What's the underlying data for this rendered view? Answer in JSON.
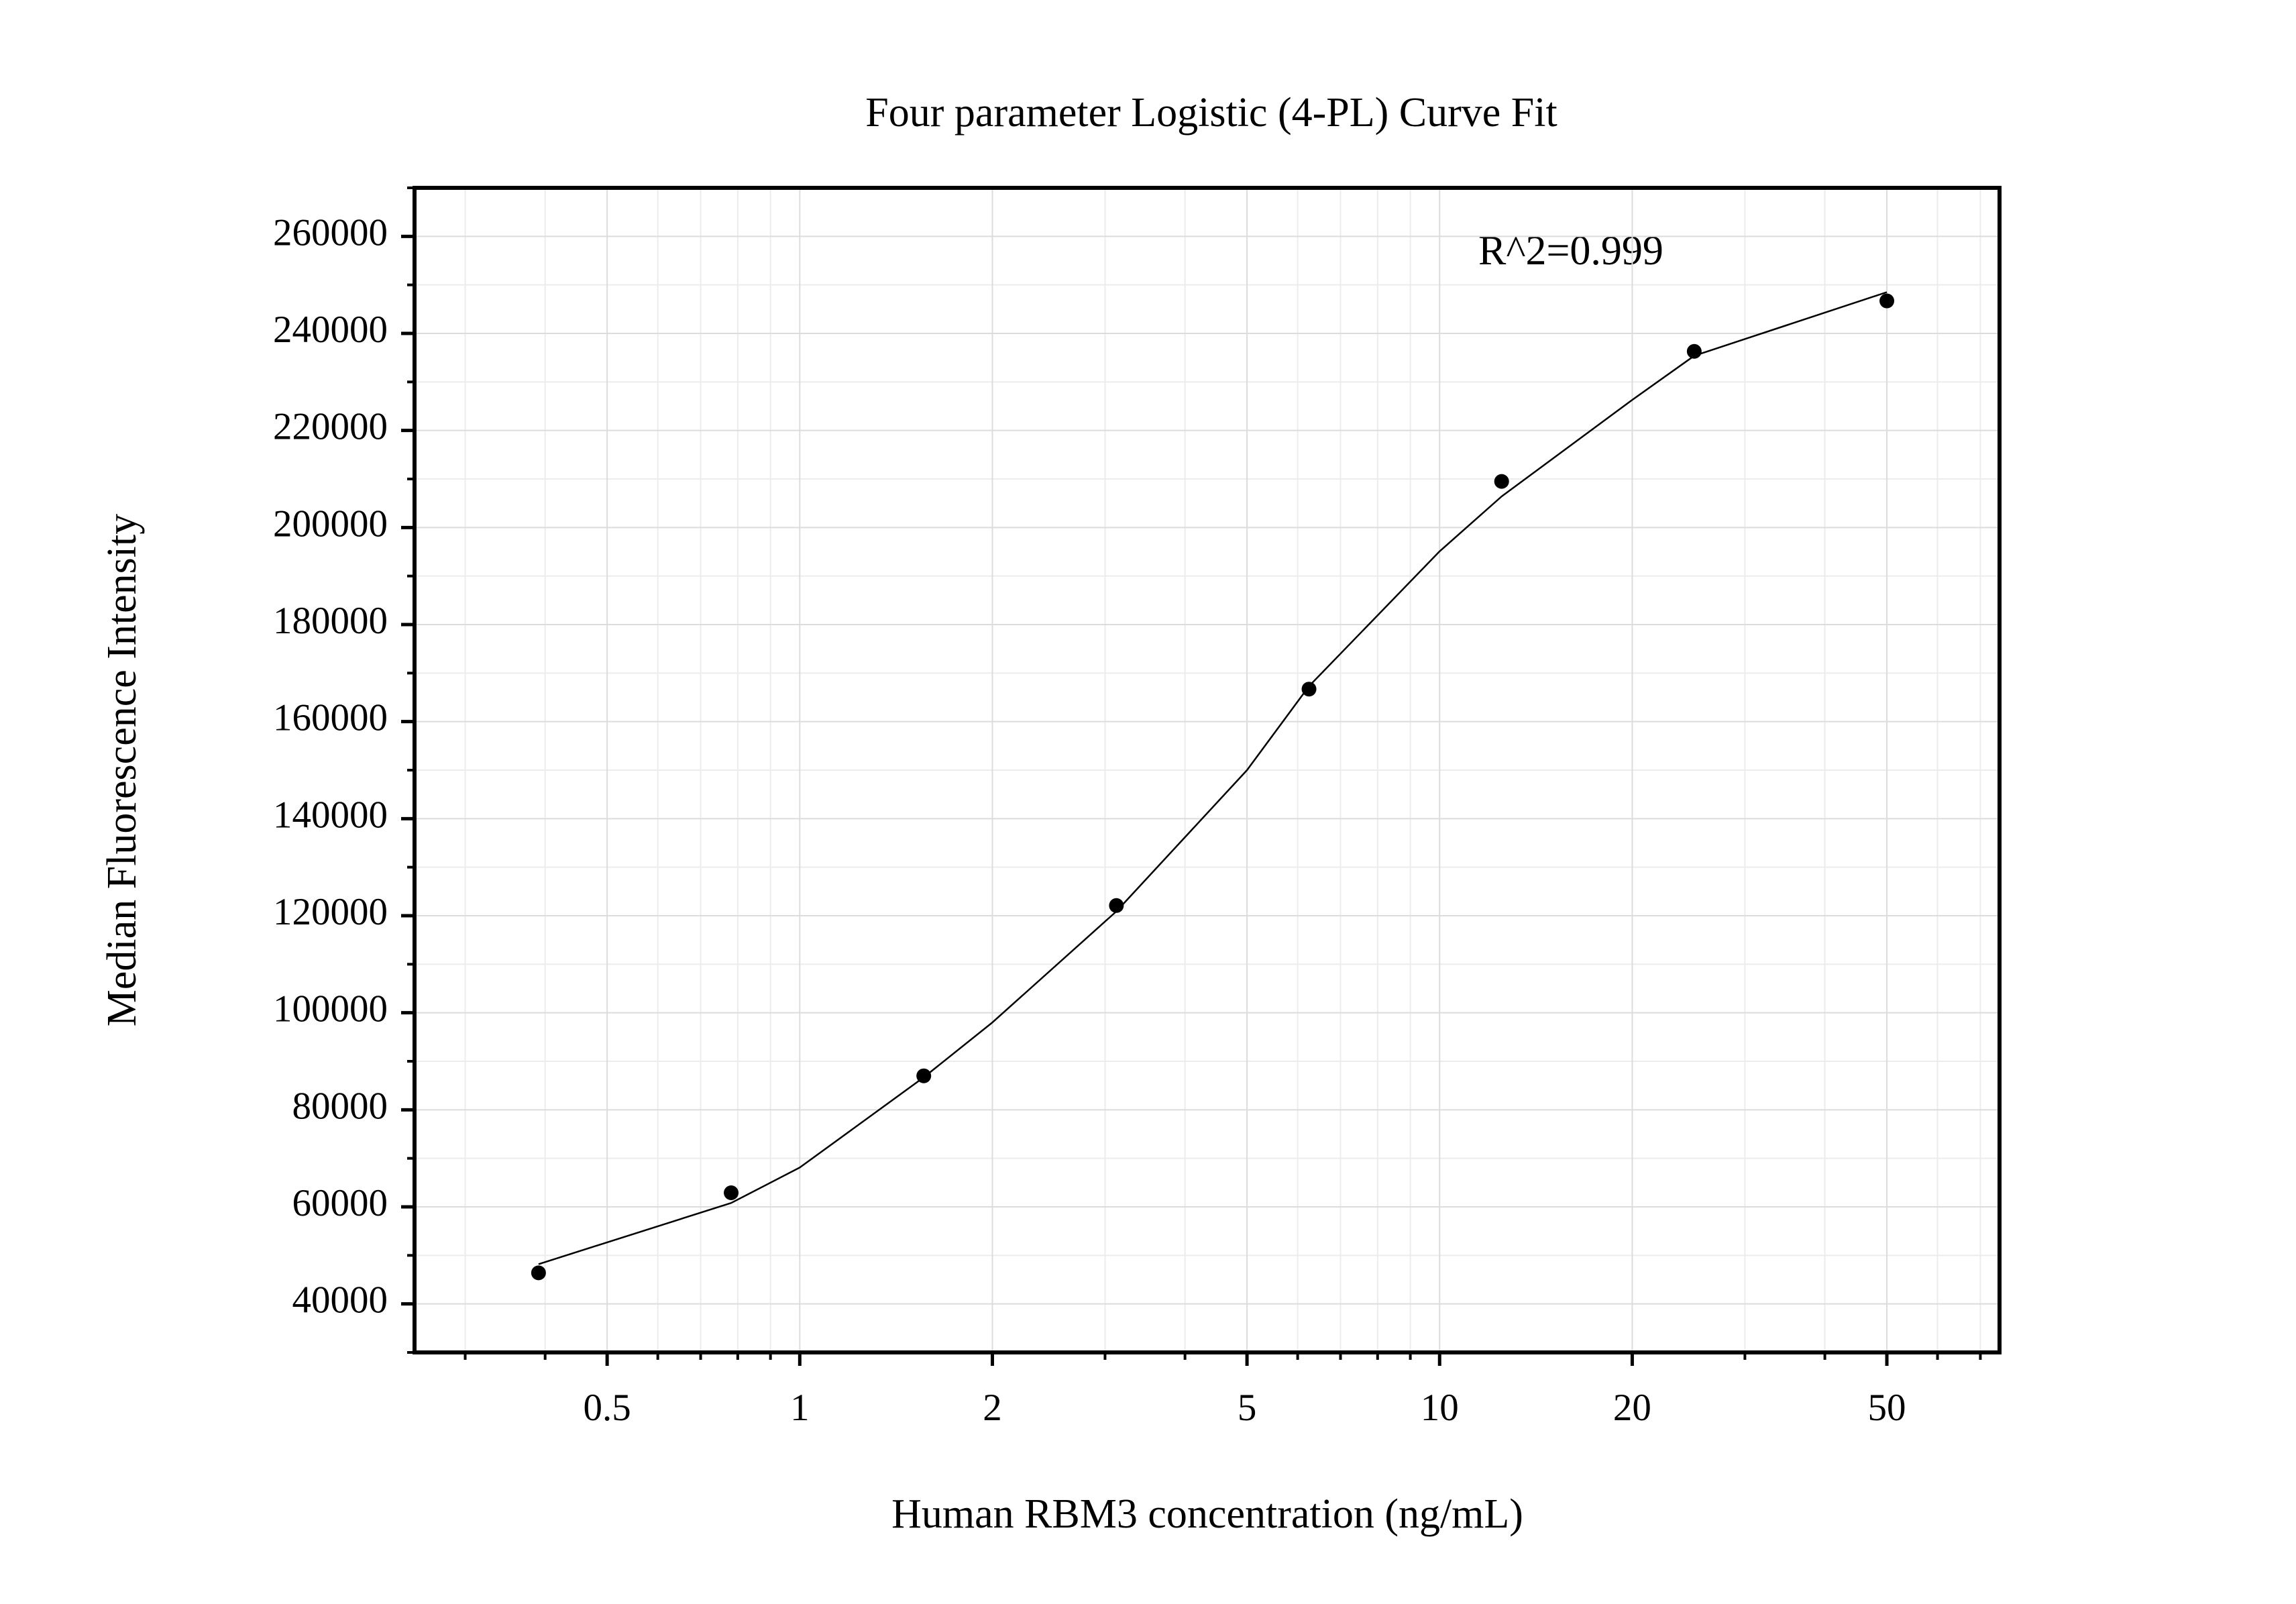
{
  "chart_data": {
    "type": "scatter",
    "title": "Four parameter Logistic (4-PL) Curve Fit",
    "x_label": "Human RBM3 concentration (ng/mL)",
    "y_label": "Median Fluorescence Intensity",
    "annotation": "R^2=0.999",
    "x_scale": "log",
    "grid": true,
    "xlim": [
      0.25,
      75
    ],
    "ylim": [
      30000,
      270000
    ],
    "xticks": [
      0.5,
      1,
      2,
      5,
      10,
      20,
      50
    ],
    "xminorticks": [
      0.3,
      0.4,
      0.6,
      0.7,
      0.8,
      0.9,
      3,
      4,
      6,
      7,
      8,
      9,
      30,
      40,
      60,
      70
    ],
    "yticks": [
      40000,
      60000,
      80000,
      100000,
      120000,
      140000,
      160000,
      180000,
      200000,
      220000,
      240000,
      260000
    ],
    "yminorticks": [
      30000,
      50000,
      70000,
      90000,
      110000,
      130000,
      150000,
      170000,
      190000,
      210000,
      230000,
      250000,
      270000
    ],
    "series": [
      {
        "kind": "points",
        "color": "#000000",
        "x": [
          0.390625,
          0.78125,
          1.5625,
          3.125,
          6.25,
          12.5,
          25,
          50
        ],
        "values": [
          46400,
          62900,
          87000,
          122100,
          166700,
          209500,
          236300,
          246700
        ]
      },
      {
        "kind": "fit",
        "color": "#000000",
        "x": [
          0.390625,
          0.78125,
          1,
          1.5625,
          2,
          3.125,
          5,
          6.25,
          10,
          12.5,
          20,
          25,
          50
        ],
        "values": [
          48200,
          60800,
          68100,
          86700,
          98000,
          120900,
          150000,
          167300,
          195100,
          206400,
          226300,
          235400,
          248500
        ]
      }
    ]
  }
}
